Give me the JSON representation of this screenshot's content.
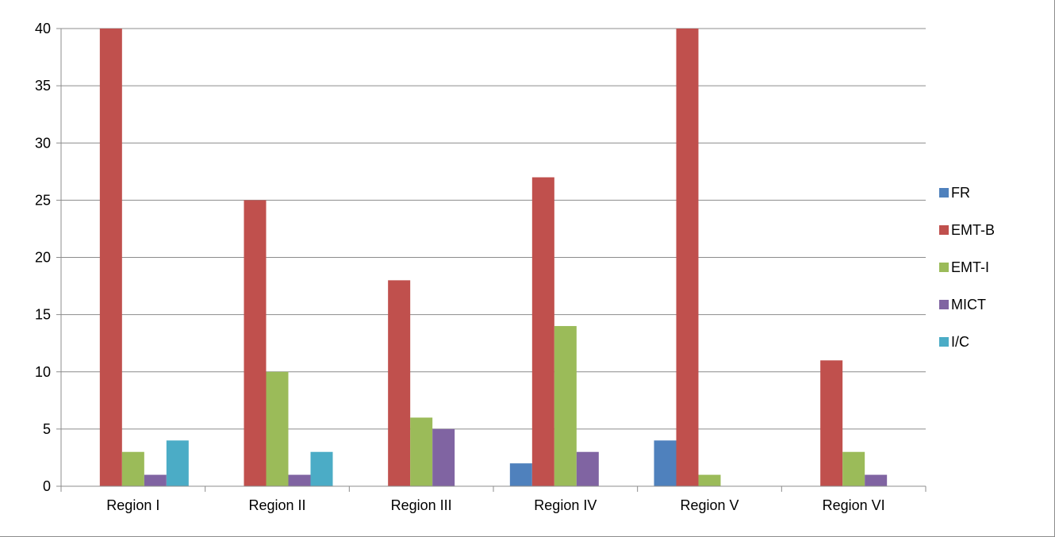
{
  "chart_data": {
    "type": "bar",
    "title": "",
    "xlabel": "",
    "ylabel": "",
    "ylim": [
      0,
      40
    ],
    "yticks": [
      0,
      5,
      10,
      15,
      20,
      25,
      30,
      35,
      40
    ],
    "grid": true,
    "legend_position": "right",
    "categories": [
      "Region I",
      "Region II",
      "Region III",
      "Region IV",
      "Region V",
      "Region VI"
    ],
    "series": [
      {
        "name": "FR",
        "color": "#4f81bd",
        "values": [
          0,
          0,
          0,
          2,
          4,
          0
        ]
      },
      {
        "name": "EMT-B",
        "color": "#c0504d",
        "values": [
          40,
          25,
          18,
          27,
          40,
          11
        ]
      },
      {
        "name": "EMT-I",
        "color": "#9bbb59",
        "values": [
          3,
          10,
          6,
          14,
          1,
          3
        ]
      },
      {
        "name": "MICT",
        "color": "#8064a2",
        "values": [
          1,
          1,
          5,
          3,
          0,
          1
        ]
      },
      {
        "name": "I/C",
        "color": "#4bacc6",
        "values": [
          4,
          3,
          0,
          0,
          0,
          0
        ]
      }
    ]
  }
}
